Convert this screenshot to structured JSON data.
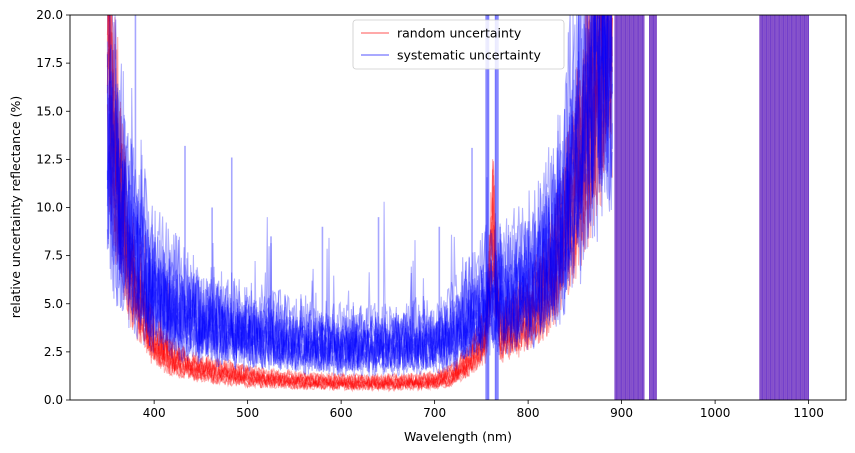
{
  "chart_data": {
    "type": "line",
    "title": "",
    "xlabel": "Wavelength (nm)",
    "ylabel": "relative uncertainty reflectance (%)",
    "xlim": [
      310,
      1140
    ],
    "ylim": [
      0,
      20
    ],
    "xticks": [
      400,
      500,
      600,
      700,
      800,
      900,
      1000,
      1100
    ],
    "yticks": [
      0.0,
      2.5,
      5.0,
      7.5,
      10.0,
      12.5,
      15.0,
      17.5,
      20.0
    ],
    "ytick_labels": [
      "0.0",
      "2.5",
      "5.0",
      "7.5",
      "10.0",
      "12.5",
      "15.0",
      "17.5",
      "20.0"
    ],
    "grid": false,
    "legend_position": "top-center",
    "series": [
      {
        "name": "random uncertainty",
        "color": "#ff0000",
        "opacity": 0.3,
        "num_curves": 12,
        "wavelength_range": [
          350,
          1100
        ],
        "baseline_profile": [
          [
            350,
            19.0
          ],
          [
            360,
            12.0
          ],
          [
            370,
            8.0
          ],
          [
            380,
            5.8
          ],
          [
            390,
            4.2
          ],
          [
            400,
            3.0
          ],
          [
            420,
            2.2
          ],
          [
            450,
            1.6
          ],
          [
            500,
            1.2
          ],
          [
            550,
            1.0
          ],
          [
            600,
            0.9
          ],
          [
            650,
            0.9
          ],
          [
            700,
            1.0
          ],
          [
            720,
            1.3
          ],
          [
            740,
            2.2
          ],
          [
            755,
            3.5
          ],
          [
            762,
            9.0
          ],
          [
            770,
            3.5
          ],
          [
            790,
            4.0
          ],
          [
            810,
            5.0
          ],
          [
            830,
            7.0
          ],
          [
            850,
            11.0
          ],
          [
            870,
            16.0
          ],
          [
            885,
            20.0
          ]
        ],
        "noise_band": [
          700,
          740,
          1.0
        ],
        "saturated_ranges": [
          [
            893,
            925
          ],
          [
            930,
            937
          ],
          [
            1048,
            1100
          ]
        ]
      },
      {
        "name": "systematic uncertainty",
        "color": "#0000ff",
        "opacity": 0.3,
        "num_curves": 12,
        "wavelength_range": [
          350,
          1100
        ],
        "baseline_profile": [
          [
            350,
            15.0
          ],
          [
            360,
            11.0
          ],
          [
            370,
            9.0
          ],
          [
            380,
            7.5
          ],
          [
            390,
            6.5
          ],
          [
            400,
            5.5
          ],
          [
            420,
            4.8
          ],
          [
            450,
            4.0
          ],
          [
            500,
            3.4
          ],
          [
            550,
            3.0
          ],
          [
            600,
            2.8
          ],
          [
            650,
            2.8
          ],
          [
            700,
            3.0
          ],
          [
            720,
            3.4
          ],
          [
            740,
            4.2
          ],
          [
            755,
            5.0
          ],
          [
            770,
            5.2
          ],
          [
            790,
            5.5
          ],
          [
            810,
            6.2
          ],
          [
            830,
            8.0
          ],
          [
            850,
            12.0
          ],
          [
            870,
            16.5
          ],
          [
            885,
            20.0
          ]
        ],
        "spikes": [
          [
            433,
            13.2
          ],
          [
            483,
            12.6
          ],
          [
            462,
            10.0
          ],
          [
            740,
            13.1
          ],
          [
            705,
            9.0
          ],
          [
            580,
            9.0
          ],
          [
            640,
            9.5
          ],
          [
            525,
            8.5
          ],
          [
            770,
            9.0
          ],
          [
            380,
            20.0
          ]
        ],
        "saturated_ranges": [
          [
            755,
            758
          ],
          [
            765,
            768
          ],
          [
            893,
            925
          ],
          [
            930,
            937
          ],
          [
            1048,
            1100
          ]
        ]
      }
    ]
  }
}
